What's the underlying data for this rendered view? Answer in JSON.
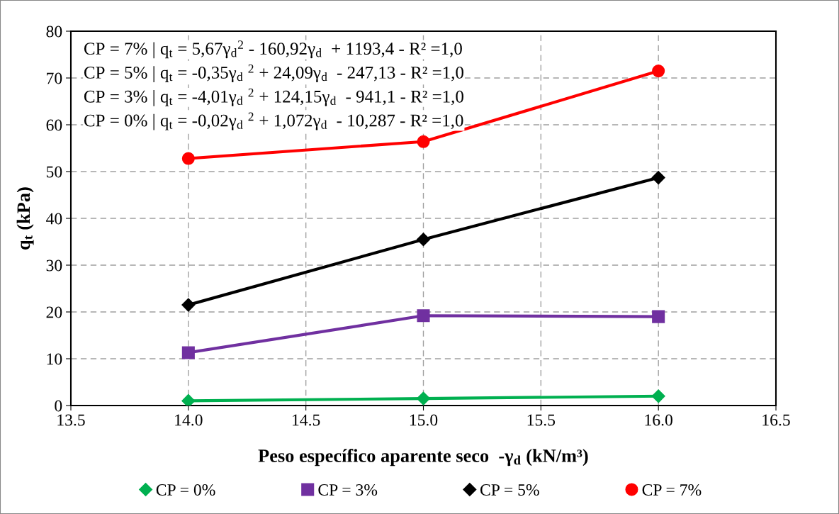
{
  "chart_data": {
    "type": "line",
    "xlabel": "Peso específico aparente seco  -γ$_{d}$ (kN/m³)",
    "ylabel": "q$_{t}$ (kPa)",
    "x": [
      14,
      15,
      16
    ],
    "series": [
      {
        "name": "CP = 0%",
        "color": "#00b050",
        "marker": "diamond",
        "values": [
          1.0,
          1.5,
          2.0
        ]
      },
      {
        "name": "CP = 3%",
        "color": "#7030a0",
        "marker": "square",
        "values": [
          11.3,
          19.2,
          19.0
        ]
      },
      {
        "name": "CP = 5%",
        "color": "#000000",
        "marker": "diamond",
        "values": [
          21.5,
          35.5,
          48.7
        ]
      },
      {
        "name": "CP = 7%",
        "color": "#ff0000",
        "marker": "circle",
        "values": [
          52.8,
          56.4,
          71.5
        ]
      }
    ],
    "annotations": [
      "CP = 7% | q$_{t}$ = 5,67γ$_{d}$$^{2}$ - 160,92γ$_{d}$  + 1193,4 - R² =1,0",
      "CP = 5% | q$_{t}$ = -0,35γ$_{d}$ $^{2}$ + 24,09γ$_{d}$  - 247,13 - R² =1,0",
      "CP = 3% | q$_{t}$ = -4,01γ$_{d}$ $^{2}$ + 124,15γ$_{d}$  - 941,1 - R² =1,0",
      "CP = 0% | q$_{t}$ = -0,02γ$_{d}$ $^{2}$ + 1,072γ$_{d}$  - 10,287 - R² =1,0"
    ],
    "xlim": [
      13.5,
      16.5
    ],
    "xticks": [
      {
        "value": 13.5,
        "label": "13.5"
      },
      {
        "value": 14,
        "label": "14.0"
      },
      {
        "value": 14.5,
        "label": "14.5"
      },
      {
        "value": 15,
        "label": "15.0"
      },
      {
        "value": 15.5,
        "label": "15.5"
      },
      {
        "value": 16,
        "label": "16.0"
      },
      {
        "value": 16.5,
        "label": "16.5"
      }
    ],
    "ylim": [
      0,
      80
    ],
    "yticks": [
      0,
      10,
      20,
      30,
      40,
      50,
      60,
      70,
      80
    ],
    "grid": true,
    "line_style": "solid",
    "legend": "bottom"
  }
}
